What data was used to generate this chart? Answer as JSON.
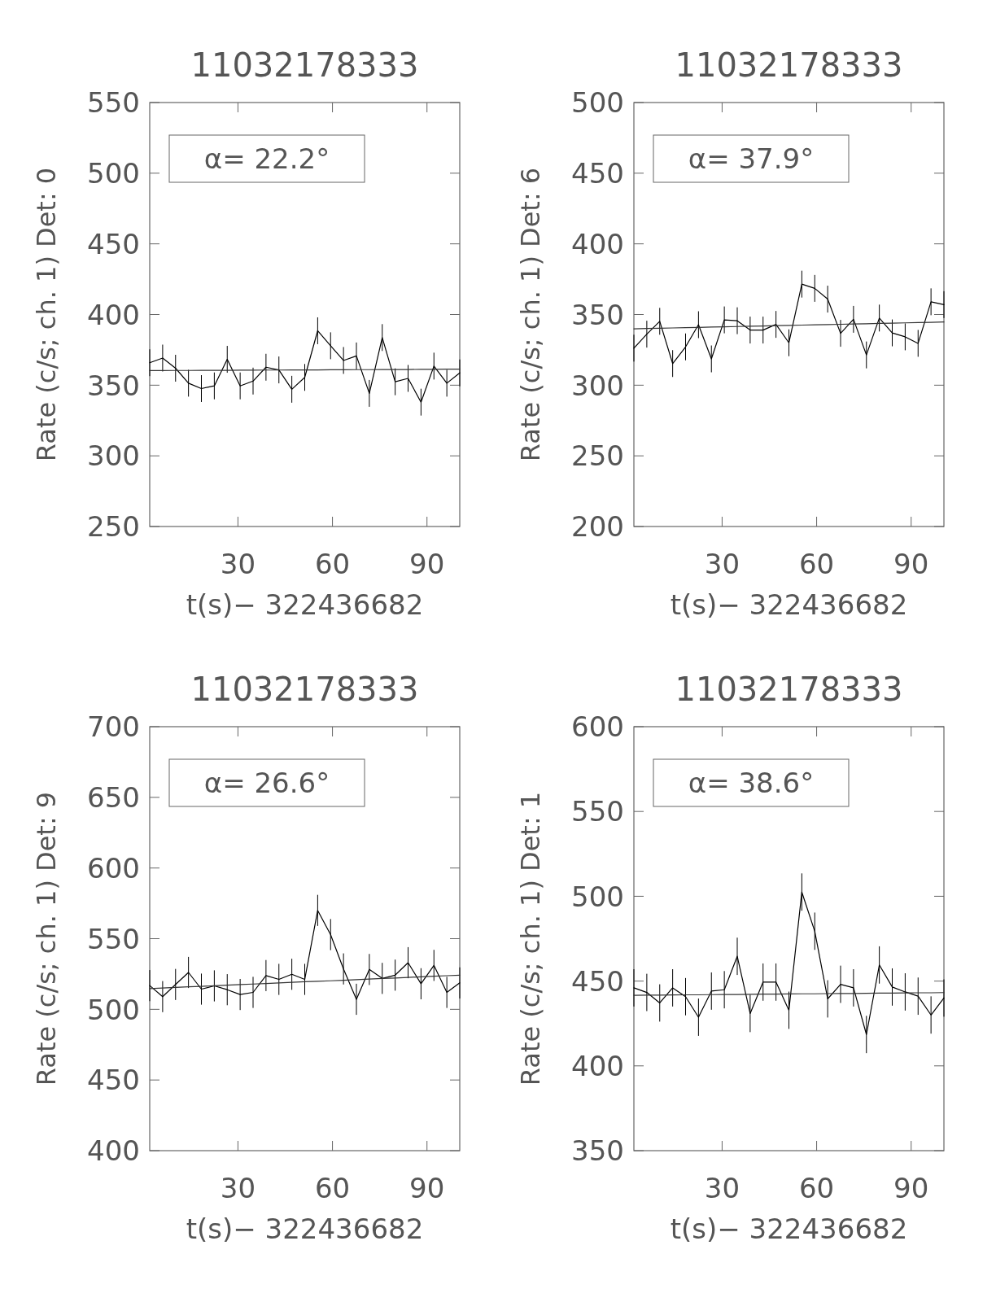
{
  "chart_data": [
    {
      "type": "line",
      "title": "11032178333",
      "xlabel": "t(s)− 322436682",
      "ylabel": "Rate (c/s; ch. 1) Det: 0",
      "annotations": [
        "α= 22.2°"
      ],
      "x": [
        2,
        6.1,
        10.2,
        14.3,
        18.4,
        22.5,
        26.6,
        30.7,
        34.8,
        38.9,
        43,
        47.1,
        51.2,
        55.3,
        59.4,
        63.5,
        67.6,
        71.7,
        75.8,
        79.9,
        84,
        88.1,
        92.2,
        96.3,
        100.4
      ],
      "xlim": [
        2,
        100.4
      ],
      "xticks": [
        30,
        60,
        90
      ],
      "ylim": [
        250,
        550
      ],
      "yticks": [
        250,
        300,
        350,
        400,
        450,
        500,
        550
      ],
      "series": [
        {
          "color": "#000000",
          "values": [
            365.9,
            369.2,
            362,
            351.4,
            347.6,
            349.5,
            368.3,
            349.5,
            352.9,
            362.7,
            360.8,
            347.1,
            355.5,
            388.5,
            377.9,
            367.5,
            370.7,
            344.2,
            383.7,
            352.4,
            354.8,
            338,
            363.5,
            351.4,
            358.7
          ],
          "errors": [
            9.5,
            9.5,
            9.5,
            9.5,
            9.5,
            9.5,
            9.5,
            9.5,
            9.5,
            9.5,
            9.5,
            9.5,
            9.5,
            9.5,
            9.5,
            9.5,
            9.5,
            9.5,
            9.5,
            9.5,
            9.5,
            9.5,
            9.5,
            9.5,
            9.5
          ]
        },
        {
          "color": "#333333",
          "values": [
            360.3,
            360.3,
            360.4,
            360.4,
            360.5,
            360.5,
            360.5,
            360.6,
            360.6,
            360.7,
            360.7,
            360.8,
            360.8,
            360.8,
            360.9,
            360.9,
            361,
            361,
            361.1,
            361.1,
            361.1,
            361.2,
            361.2,
            361.3,
            361.3
          ]
        }
      ]
    },
    {
      "type": "line",
      "title": "11032178333",
      "xlabel": "t(s)− 322436682",
      "ylabel": "Rate (c/s; ch. 1) Det: 6",
      "annotations": [
        "α= 37.9°"
      ],
      "x": [
        2,
        6.1,
        10.2,
        14.3,
        18.4,
        22.5,
        26.6,
        30.7,
        34.8,
        38.9,
        43,
        47.1,
        51.2,
        55.3,
        59.4,
        63.5,
        67.6,
        71.7,
        75.8,
        79.9,
        84,
        88.1,
        92.2,
        96.3,
        100.4
      ],
      "xlim": [
        2,
        100.4
      ],
      "xticks": [
        30,
        60,
        90
      ],
      "ylim": [
        200,
        500
      ],
      "yticks": [
        200,
        250,
        300,
        350,
        400,
        450,
        500
      ],
      "series": [
        {
          "color": "#000000",
          "values": [
            326.2,
            336.1,
            345.2,
            315.3,
            327.1,
            342.8,
            318.6,
            346.2,
            345.6,
            339,
            339,
            343,
            330,
            371.5,
            368.5,
            360.9,
            336.7,
            346.6,
            321.4,
            347.5,
            337,
            334.2,
            329.6,
            359,
            357
          ],
          "errors": [
            9.5,
            9.5,
            9.5,
            9.5,
            9.5,
            9.5,
            9.5,
            9.5,
            9.5,
            9.5,
            9.5,
            9.5,
            9.5,
            9.5,
            9.5,
            9.5,
            9.5,
            9.5,
            9.5,
            9.5,
            9.5,
            9.5,
            9.5,
            9.5,
            9.5
          ]
        },
        {
          "color": "#333333",
          "values": [
            339.9,
            340.1,
            340.3,
            340.5,
            340.7,
            340.9,
            341.1,
            341.3,
            341.5,
            341.7,
            341.9,
            342.1,
            342.3,
            342.5,
            342.7,
            342.9,
            343.1,
            343.3,
            343.5,
            343.7,
            343.9,
            344.1,
            344.3,
            344.5,
            344.7
          ]
        }
      ]
    },
    {
      "type": "line",
      "title": "11032178333",
      "xlabel": "t(s)− 322436682",
      "ylabel": "Rate (c/s; ch. 1) Det: 9",
      "annotations": [
        "α= 26.6°"
      ],
      "x": [
        2,
        6.1,
        10.2,
        14.3,
        18.4,
        22.5,
        26.6,
        30.7,
        34.8,
        38.9,
        43,
        47.1,
        51.2,
        55.3,
        59.4,
        63.5,
        67.6,
        71.7,
        75.8,
        79.9,
        84,
        88.1,
        92.2,
        96.3,
        100.4
      ],
      "xlim": [
        2,
        100.4
      ],
      "xticks": [
        30,
        60,
        90
      ],
      "ylim": [
        400,
        700
      ],
      "yticks": [
        400,
        450,
        500,
        550,
        600,
        650,
        700
      ],
      "series": [
        {
          "color": "#000000",
          "values": [
            516.8,
            509,
            517.6,
            526.1,
            514.3,
            516.6,
            513.9,
            510.5,
            512,
            523.9,
            521.2,
            524.8,
            521.2,
            570,
            552.9,
            528.6,
            507.1,
            528.2,
            521.9,
            524.2,
            533,
            518.1,
            531.1,
            512,
            518.7
          ],
          "errors": [
            11,
            11,
            11,
            11,
            11,
            11,
            11,
            11,
            11,
            11,
            11,
            11,
            11,
            11,
            11,
            11,
            11,
            11,
            11,
            11,
            11,
            11,
            11,
            11,
            11
          ]
        },
        {
          "color": "#333333",
          "values": [
            514.7,
            515.1,
            515.5,
            515.9,
            516.3,
            516.7,
            517.1,
            517.5,
            517.9,
            518.3,
            518.7,
            519.1,
            519.5,
            519.8,
            520.2,
            520.6,
            521,
            521.4,
            521.8,
            522.2,
            522.6,
            523,
            523.4,
            523.8,
            524.2
          ]
        }
      ]
    },
    {
      "type": "line",
      "title": "11032178333",
      "xlabel": "t(s)− 322436682",
      "ylabel": "Rate (c/s; ch. 1) Det: 1",
      "annotations": [
        "α= 38.6°"
      ],
      "x": [
        2,
        6.1,
        10.2,
        14.3,
        18.4,
        22.5,
        26.6,
        30.7,
        34.8,
        38.9,
        43,
        47.1,
        51.2,
        55.3,
        59.4,
        63.5,
        67.6,
        71.7,
        75.8,
        79.9,
        84,
        88.1,
        92.2,
        96.3,
        100.4
      ],
      "xlim": [
        2,
        100.4
      ],
      "xticks": [
        30,
        60,
        90
      ],
      "ylim": [
        350,
        600
      ],
      "yticks": [
        350,
        400,
        450,
        500,
        550,
        600
      ],
      "series": [
        {
          "color": "#000000",
          "values": [
            446,
            443.3,
            437.1,
            446,
            440.8,
            428.7,
            444.1,
            444.9,
            464.6,
            430.9,
            449.4,
            449.4,
            432.8,
            502.5,
            479.4,
            439.5,
            448.1,
            446,
            418.5,
            459.5,
            446.5,
            443.6,
            441.1,
            430,
            440
          ],
          "errors": [
            11,
            11,
            11,
            11,
            11,
            11,
            11,
            11,
            11,
            11,
            11,
            11,
            11,
            11,
            11,
            11,
            11,
            11,
            11,
            11,
            11,
            11,
            11,
            11,
            11
          ]
        },
        {
          "color": "#333333",
          "values": [
            441.6,
            441.7,
            441.7,
            441.8,
            441.9,
            441.9,
            442,
            442.1,
            442.1,
            442.2,
            442.3,
            442.3,
            442.4,
            442.5,
            442.5,
            442.6,
            442.7,
            442.7,
            442.8,
            442.9,
            442.9,
            443,
            443.1,
            443.1,
            443.2
          ]
        }
      ]
    }
  ]
}
